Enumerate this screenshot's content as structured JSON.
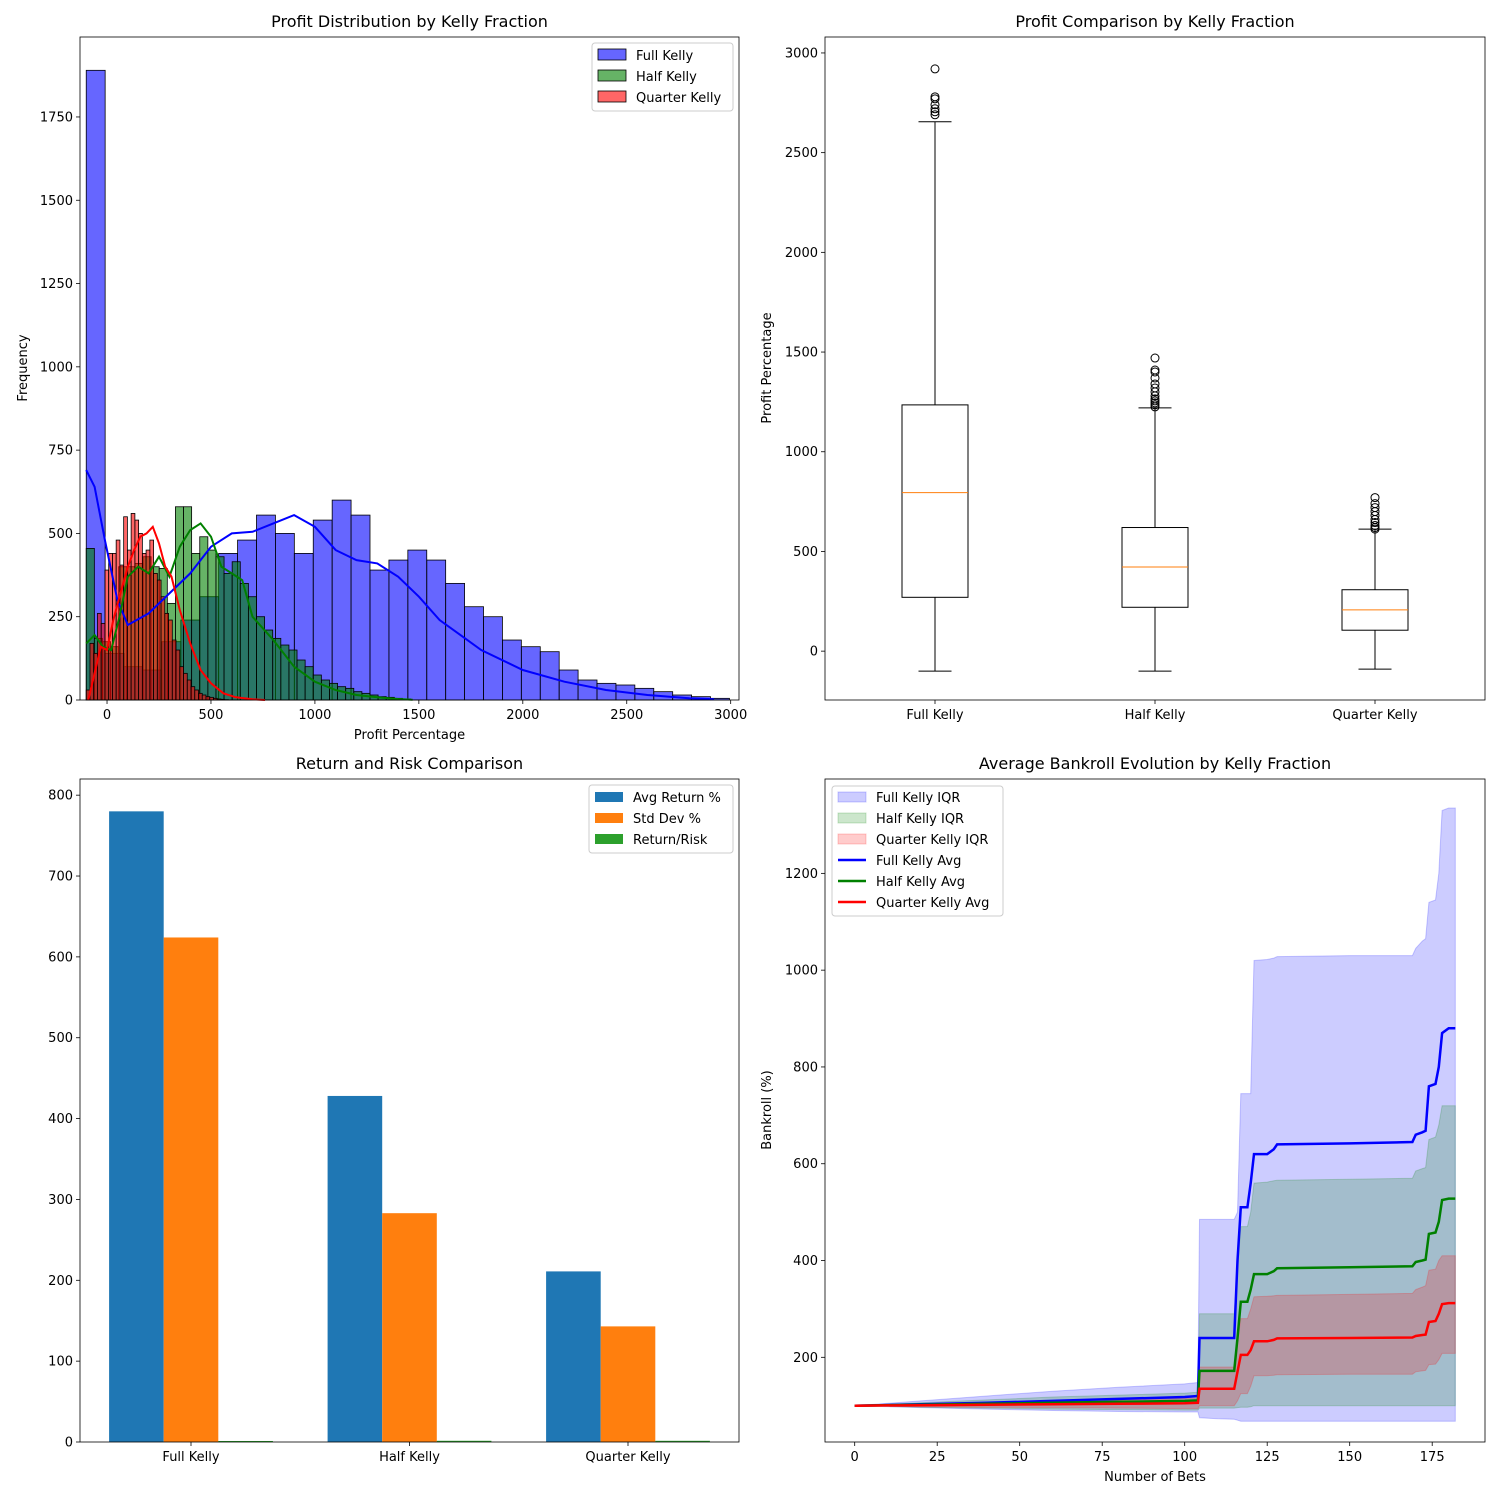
{
  "chart_data": [
    {
      "type": "histogram",
      "title": "Profit Distribution by Kelly Fraction",
      "xlabel": "Profit Percentage",
      "ylabel": "Frequency",
      "xlim": [
        -130,
        3040
      ],
      "ylim": [
        0,
        1990
      ],
      "xticks": [
        0,
        500,
        1000,
        1500,
        2000,
        2500,
        3000
      ],
      "yticks": [
        0,
        250,
        500,
        750,
        1000,
        1250,
        1500,
        1750
      ],
      "legend": "top-right",
      "series": [
        {
          "name": "Full Kelly",
          "color": "#0000ff",
          "alpha": 0.6,
          "bin_start": -100,
          "bin_width": 91,
          "counts": [
            1890,
            140,
            100,
            90,
            175,
            240,
            310,
            440,
            480,
            555,
            500,
            440,
            540,
            600,
            555,
            390,
            420,
            450,
            420,
            350,
            280,
            250,
            180,
            160,
            145,
            90,
            60,
            50,
            45,
            35,
            25,
            15,
            10,
            5
          ],
          "kde_x": [
            -100,
            -60,
            -10,
            50,
            100,
            200,
            300,
            400,
            500,
            600,
            700,
            800,
            900,
            1000,
            1100,
            1200,
            1300,
            1400,
            1500,
            1600,
            1800,
            2000,
            2200,
            2400,
            2600,
            2800,
            2920
          ],
          "kde_y": [
            690,
            640,
            480,
            300,
            225,
            260,
            320,
            380,
            460,
            500,
            505,
            530,
            555,
            520,
            450,
            420,
            410,
            370,
            310,
            240,
            150,
            90,
            55,
            30,
            15,
            5,
            2
          ]
        },
        {
          "name": "Half Kelly",
          "color": "#008000",
          "alpha": 0.6,
          "bin_start": -100,
          "bin_width": 39,
          "counts": [
            455,
            185,
            175,
            160,
            400,
            400,
            410,
            430,
            400,
            395,
            290,
            580,
            580,
            440,
            490,
            450,
            430,
            380,
            415,
            350,
            310,
            250,
            210,
            185,
            165,
            150,
            120,
            100,
            75,
            60,
            50,
            40,
            35,
            25,
            20,
            15,
            10,
            8,
            5,
            3
          ],
          "kde_x": [
            -100,
            -60,
            -20,
            20,
            60,
            100,
            150,
            200,
            250,
            300,
            350,
            400,
            450,
            500,
            550,
            600,
            650,
            700,
            800,
            900,
            1000,
            1100,
            1200,
            1300,
            1400,
            1470
          ],
          "kde_y": [
            170,
            195,
            160,
            150,
            250,
            370,
            400,
            380,
            430,
            370,
            460,
            510,
            530,
            490,
            400,
            380,
            360,
            250,
            180,
            100,
            55,
            30,
            15,
            8,
            3,
            1
          ]
        },
        {
          "name": "Quarter Kelly",
          "color": "#ff0000",
          "alpha": 0.6,
          "bin_start": -100,
          "bin_width": 18,
          "counts": [
            30,
            170,
            140,
            260,
            230,
            390,
            440,
            440,
            480,
            405,
            550,
            450,
            560,
            540,
            500,
            440,
            450,
            480,
            380,
            360,
            310,
            260,
            240,
            180,
            150,
            100,
            80,
            60,
            40,
            30,
            20,
            15,
            10,
            8,
            5,
            3,
            2,
            1
          ],
          "kde_x": [
            -90,
            -60,
            -30,
            0,
            30,
            60,
            100,
            130,
            160,
            190,
            220,
            250,
            280,
            310,
            350,
            400,
            450,
            500,
            560,
            620,
            700,
            760
          ],
          "kde_y": [
            0,
            80,
            160,
            150,
            240,
            310,
            400,
            450,
            490,
            500,
            520,
            470,
            400,
            370,
            270,
            170,
            90,
            50,
            20,
            8,
            2,
            0
          ]
        }
      ]
    },
    {
      "type": "box",
      "title": "Profit Comparison by Kelly Fraction",
      "xlabel": "",
      "ylabel": "Profit Percentage",
      "ylim": [
        -245,
        3080
      ],
      "yticks": [
        0,
        500,
        1000,
        1500,
        2000,
        2500,
        3000
      ],
      "categories": [
        "Full Kelly",
        "Half Kelly",
        "Quarter Kelly"
      ],
      "boxes": [
        {
          "whislo": -100,
          "q1": 270,
          "med": 795,
          "q3": 1235,
          "whishi": 2655,
          "fliers": [
            2690,
            2705,
            2720,
            2740,
            2770,
            2780,
            2920
          ]
        },
        {
          "whislo": -100,
          "q1": 220,
          "med": 422,
          "q3": 620,
          "whishi": 1220,
          "fliers": [
            1225,
            1235,
            1245,
            1255,
            1265,
            1280,
            1300,
            1320,
            1340,
            1370,
            1400,
            1410,
            1470
          ]
        },
        {
          "whislo": -90,
          "q1": 105,
          "med": 207,
          "q3": 308,
          "whishi": 612,
          "fliers": [
            612,
            620,
            630,
            645,
            660,
            680,
            700,
            720,
            740,
            770
          ]
        }
      ]
    },
    {
      "type": "bar",
      "title": "Return and Risk Comparison",
      "xlabel": "",
      "ylabel": "",
      "ylim": [
        0,
        820
      ],
      "yticks": [
        0,
        100,
        200,
        300,
        400,
        500,
        600,
        700,
        800
      ],
      "categories": [
        "Full Kelly",
        "Half Kelly",
        "Quarter Kelly"
      ],
      "legend": "top-right",
      "series": [
        {
          "name": "Avg Return %",
          "color": "#1f77b4",
          "values": [
            780,
            428,
            211
          ]
        },
        {
          "name": "Std Dev %",
          "color": "#ff7f0e",
          "values": [
            624,
            283,
            143
          ]
        },
        {
          "name": "Return/Risk",
          "color": "#2ca02c",
          "values": [
            1.25,
            1.51,
            1.48
          ]
        }
      ]
    },
    {
      "type": "line",
      "title": "Average Bankroll Evolution by Kelly Fraction",
      "xlabel": "Number of Bets",
      "ylabel": "Bankroll (%)",
      "xlim": [
        -9,
        191
      ],
      "ylim": [
        25,
        1395
      ],
      "xticks": [
        0,
        25,
        50,
        75,
        100,
        125,
        150,
        175
      ],
      "yticks": [
        200,
        400,
        600,
        800,
        1000,
        1200
      ],
      "legend": "top-left",
      "x": [
        0,
        20,
        40,
        60,
        80,
        100,
        104,
        104.5,
        110,
        115,
        116,
        117,
        119,
        120,
        121,
        125,
        127,
        128,
        150,
        169,
        170,
        172,
        173,
        174,
        176,
        177,
        178,
        180,
        182
      ],
      "series": [
        {
          "name": "Full Kelly Avg",
          "color": "#0000ff",
          "values": [
            100,
            103,
            106,
            110,
            114,
            118,
            120,
            240,
            240,
            240,
            400,
            510,
            510,
            560,
            620,
            620,
            630,
            640,
            642,
            645,
            660,
            665,
            668,
            760,
            765,
            800,
            870,
            880,
            880
          ],
          "iqr_name": "Full Kelly IQR",
          "iqr_low": [
            100,
            96,
            93,
            90,
            88,
            87,
            87,
            75,
            73,
            72,
            70,
            68,
            68,
            68,
            68,
            68,
            68,
            68,
            68,
            68,
            68,
            68,
            68,
            68,
            68,
            68,
            68,
            68,
            68
          ],
          "iqr_high": [
            100,
            110,
            120,
            130,
            138,
            145,
            148,
            485,
            485,
            485,
            500,
            745,
            745,
            745,
            1020,
            1022,
            1025,
            1028,
            1030,
            1030,
            1045,
            1060,
            1065,
            1140,
            1145,
            1200,
            1330,
            1335,
            1335
          ]
        },
        {
          "name": "Half Kelly Avg",
          "color": "#008000",
          "values": [
            100,
            102,
            104,
            106,
            108,
            110,
            111,
            172,
            172,
            172,
            240,
            315,
            315,
            340,
            372,
            372,
            378,
            384,
            386,
            388,
            397,
            400,
            402,
            455,
            458,
            480,
            525,
            528,
            528
          ],
          "iqr_name": "Half Kelly IQR",
          "iqr_low": [
            100,
            97,
            95,
            93,
            92,
            91,
            91,
            95,
            95,
            95,
            96,
            97,
            97,
            98,
            100,
            100,
            100,
            100,
            100,
            100,
            100,
            100,
            100,
            100,
            100,
            100,
            100,
            100,
            100
          ],
          "iqr_high": [
            100,
            106,
            112,
            118,
            122,
            126,
            128,
            290,
            290,
            290,
            380,
            470,
            470,
            500,
            560,
            562,
            565,
            566,
            568,
            570,
            585,
            590,
            592,
            650,
            655,
            680,
            720,
            720,
            720
          ]
        },
        {
          "name": "Quarter Kelly Avg",
          "color": "#ff0000",
          "values": [
            100,
            101,
            102,
            103,
            104,
            105,
            106,
            135,
            135,
            135,
            170,
            205,
            205,
            215,
            233,
            233,
            236,
            239,
            240,
            241,
            244,
            246,
            247,
            273,
            275,
            290,
            310,
            312,
            312
          ],
          "iqr_name": "Quarter Kelly IQR",
          "iqr_low": [
            100,
            98,
            97,
            96,
            95,
            94,
            94,
            100,
            100,
            100,
            110,
            125,
            125,
            140,
            162,
            162,
            163,
            164,
            165,
            165,
            170,
            172,
            173,
            185,
            186,
            195,
            208,
            208,
            208
          ],
          "iqr_high": [
            100,
            103,
            106,
            109,
            112,
            115,
            116,
            180,
            180,
            180,
            230,
            280,
            280,
            300,
            325,
            326,
            327,
            328,
            330,
            332,
            340,
            345,
            348,
            380,
            382,
            400,
            410,
            410,
            410
          ]
        }
      ]
    }
  ]
}
